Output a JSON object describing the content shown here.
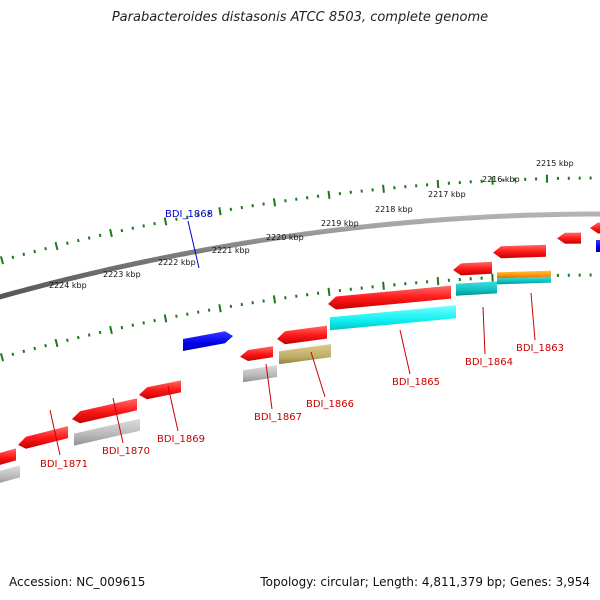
{
  "title": "Parabacteroides distasonis ATCC 8503, complete genome",
  "footer": {
    "accession": "Accession: NC_009615",
    "topology": "Topology: circular; Length: 4,811,379 bp; Genes: 3,954"
  },
  "colors": {
    "gene_red": "#ff1a1a",
    "gene_blue": "#0000ee",
    "gene_gray": "#b8b8b8",
    "gene_cyan": "#10f0f0",
    "gene_teal": "#10c8c8",
    "gene_olive": "#c0b468",
    "gene_orange": "#ff9400",
    "tick_green": "#1a7a1a",
    "backbone": "#808080",
    "label_red": "#cc0000",
    "label_blue": "#0000cc"
  },
  "chart_data": {
    "type": "genome-map",
    "kbp_ticks": [
      "2215 kbp",
      "2216 kbp",
      "2217 kbp",
      "2218 kbp",
      "2219 kbp",
      "2220 kbp",
      "2221 kbp",
      "2222 kbp",
      "2223 kbp",
      "2224 kbp"
    ],
    "gene_labels": [
      {
        "name": "BDI_1868",
        "color": "blue"
      },
      {
        "name": "BDI_1863",
        "color": "red"
      },
      {
        "name": "BDI_1864",
        "color": "red"
      },
      {
        "name": "BDI_1865",
        "color": "red"
      },
      {
        "name": "BDI_1866",
        "color": "red"
      },
      {
        "name": "BDI_1867",
        "color": "red"
      },
      {
        "name": "BDI_1869",
        "color": "red"
      },
      {
        "name": "BDI_1870",
        "color": "red"
      },
      {
        "name": "BDI_1871",
        "color": "red"
      }
    ]
  }
}
